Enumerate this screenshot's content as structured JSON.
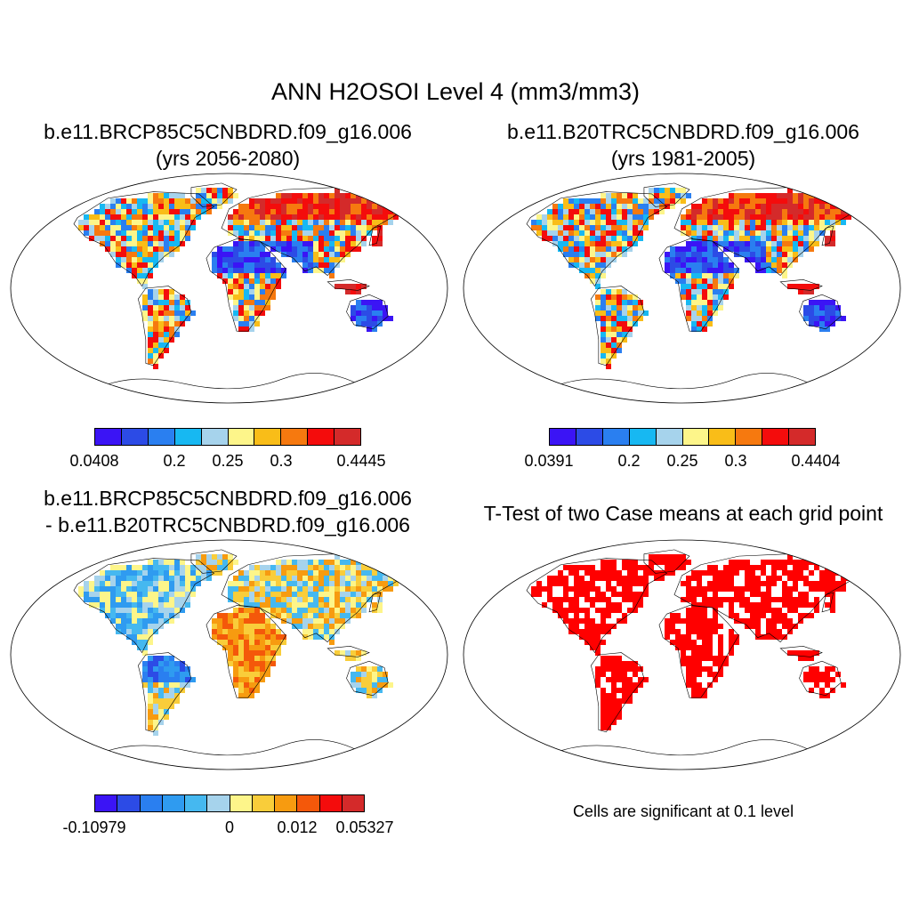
{
  "figure": {
    "main_title": "ANN H2OSOI Level 4 (mm3/mm3)"
  },
  "panels": [
    {
      "title_line1": "b.e11.BRCP85C5CNBDRD.f09_g16.006",
      "title_line2": "(yrs 2056-2080)",
      "colorbar_ticks": [
        "0.0408",
        "0.2",
        "0.25",
        "0.3",
        "0.4445"
      ]
    },
    {
      "title_line1": "b.e11.B20TRC5CNBDRD.f09_g16.006",
      "title_line2": "(yrs 1981-2005)",
      "colorbar_ticks": [
        "0.0391",
        "0.2",
        "0.25",
        "0.3",
        "0.4404"
      ]
    },
    {
      "title_line1": "b.e11.BRCP85C5CNBDRD.f09_g16.006",
      "title_line2": "- b.e11.B20TRC5CNBDRD.f09_g16.006",
      "colorbar_ticks": [
        "-0.10979",
        "0",
        "0.012",
        "0.05327"
      ]
    },
    {
      "title_line1": "T-Test of two Case means at each grid point",
      "note": "Cells are significant at 0.1 level"
    }
  ],
  "colors": {
    "abs_palette": [
      "#3b14f5",
      "#2c4be6",
      "#2a7ff0",
      "#17b8f2",
      "#a6d3ec",
      "#fdf58a",
      "#f9bd18",
      "#f6790f",
      "#f40c0c",
      "#d42a2a"
    ],
    "diff_palette": [
      "#3b14f5",
      "#2c4be6",
      "#2a7ff0",
      "#2f9bf0",
      "#45b8f0",
      "#a6d3ec",
      "#fdf58a",
      "#f9cd3a",
      "#f79b10",
      "#f4580a",
      "#f40c0c",
      "#d42a2a"
    ],
    "significant": "#ff0000",
    "coastline": "#000000"
  }
}
